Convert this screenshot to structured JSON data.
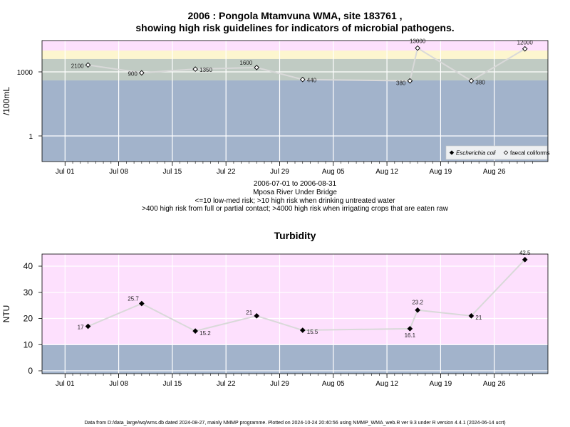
{
  "colors": {
    "pink": "#fde0fd",
    "yellow": "#fdf6cf",
    "grey_green": "#c0cbc3",
    "blue_grey": "#a2b3cb",
    "line": "#d9d9d9",
    "grid": "#ffffff"
  },
  "chart_data": [
    {
      "type": "line",
      "title": "2006 : Pongola Mtamvuna WMA, site 183761 ,",
      "subtitle": "showing high risk guidelines for indicators of microbial pathogens.",
      "ylabel": "/100mL",
      "y_scale": "log",
      "y_ticks": [
        {
          "value": 1,
          "label": "1"
        },
        {
          "value": 1000,
          "label": "1000"
        }
      ],
      "x_ticks": [
        {
          "date": "2006-07-01",
          "label": "Jul 01"
        },
        {
          "date": "2006-07-08",
          "label": "Jul 08"
        },
        {
          "date": "2006-07-15",
          "label": "Jul 15"
        },
        {
          "date": "2006-07-22",
          "label": "Jul 22"
        },
        {
          "date": "2006-07-29",
          "label": "Jul 29"
        },
        {
          "date": "2006-08-05",
          "label": "Aug 05"
        },
        {
          "date": "2006-08-12",
          "label": "Aug 12"
        },
        {
          "date": "2006-08-19",
          "label": "Aug 19"
        },
        {
          "date": "2006-08-26",
          "label": "Aug 26"
        }
      ],
      "bands": [
        {
          "from": 10000,
          "to": 30000,
          "color": "pink"
        },
        {
          "from": 4000,
          "to": 10000,
          "color": "yellow"
        },
        {
          "from": 400,
          "to": 4000,
          "color": "grey_green"
        },
        {
          "from": 0.05,
          "to": 400,
          "color": "blue_grey"
        }
      ],
      "legend": {
        "position": "bottom-right",
        "entries": [
          {
            "label": "Escherichia coli",
            "marker": "filled-diamond",
            "italic": true
          },
          {
            "label": "faecal coliforms",
            "marker": "open-diamond",
            "italic": false
          }
        ]
      },
      "series": [
        {
          "name": "faecal coliforms",
          "marker": "open-diamond",
          "points": [
            {
              "date": "2006-07-04",
              "value": 2100,
              "label": "2100"
            },
            {
              "date": "2006-07-11",
              "value": 900,
              "label": "900"
            },
            {
              "date": "2006-07-18",
              "value": 1350,
              "label": "1350"
            },
            {
              "date": "2006-07-26",
              "value": 1600,
              "label": "1600"
            },
            {
              "date": "2006-08-01",
              "value": 440,
              "label": "440"
            },
            {
              "date": "2006-08-15",
              "value": 380,
              "label": "380"
            },
            {
              "date": "2006-08-16",
              "value": 13000,
              "label": "13000"
            },
            {
              "date": "2006-08-23",
              "value": 380,
              "label": "380"
            },
            {
              "date": "2006-08-30",
              "value": 12000,
              "label": "12000"
            }
          ]
        }
      ]
    },
    {
      "type": "line",
      "title": "Turbidity",
      "ylabel": "NTU",
      "y_scale": "linear",
      "ylim": [
        -1.5,
        45
      ],
      "y_ticks": [
        {
          "value": 0,
          "label": "0"
        },
        {
          "value": 10,
          "label": "10"
        },
        {
          "value": 20,
          "label": "20"
        },
        {
          "value": 30,
          "label": "30"
        },
        {
          "value": 40,
          "label": "40"
        }
      ],
      "x_ticks": [
        {
          "date": "2006-07-01",
          "label": "Jul 01"
        },
        {
          "date": "2006-07-08",
          "label": "Jul 08"
        },
        {
          "date": "2006-07-15",
          "label": "Jul 15"
        },
        {
          "date": "2006-07-22",
          "label": "Jul 22"
        },
        {
          "date": "2006-07-29",
          "label": "Jul 29"
        },
        {
          "date": "2006-08-05",
          "label": "Aug 05"
        },
        {
          "date": "2006-08-12",
          "label": "Aug 12"
        },
        {
          "date": "2006-08-19",
          "label": "Aug 19"
        },
        {
          "date": "2006-08-26",
          "label": "Aug 26"
        }
      ],
      "bands": [
        {
          "from": 10,
          "to": 45,
          "color": "pink"
        },
        {
          "from": -1.5,
          "to": 10,
          "color": "blue_grey"
        }
      ],
      "series": [
        {
          "name": "",
          "marker": "filled-diamond",
          "points": [
            {
              "date": "2006-07-04",
              "value": 17,
              "label": "17"
            },
            {
              "date": "2006-07-11",
              "value": 25.7,
              "label": "25.7"
            },
            {
              "date": "2006-07-18",
              "value": 15.2,
              "label": "15.2"
            },
            {
              "date": "2006-07-26",
              "value": 21,
              "label": "21"
            },
            {
              "date": "2006-08-01",
              "value": 15.5,
              "label": "15.5"
            },
            {
              "date": "2006-08-15",
              "value": 16.1,
              "label": "16.1"
            },
            {
              "date": "2006-08-16",
              "value": 23.2,
              "label": "23.2"
            },
            {
              "date": "2006-08-23",
              "value": 21,
              "label": "21"
            },
            {
              "date": "2006-08-30",
              "value": 42.5,
              "label": "42.5"
            }
          ]
        }
      ]
    }
  ],
  "captions": {
    "date_range": "2006-07-01 to 2006-08-31",
    "site": "Mposa River Under Bridge",
    "guideline_1": "<=10 low-med risk; >10 high risk when drinking untreated water",
    "guideline_2": ">400 high risk from full or partial contact; >4000 high risk when irrigating crops that are eaten raw",
    "footer": "Data from D:/data_large/wq/wms.db dated 2024-08-27, mainly NMMP programme. Plotted on 2024-10-24 20:40:56 using NMMP_WMA_web.R ver 9.3 under R version 4.4.1 (2024-06-14 ucrt)"
  }
}
